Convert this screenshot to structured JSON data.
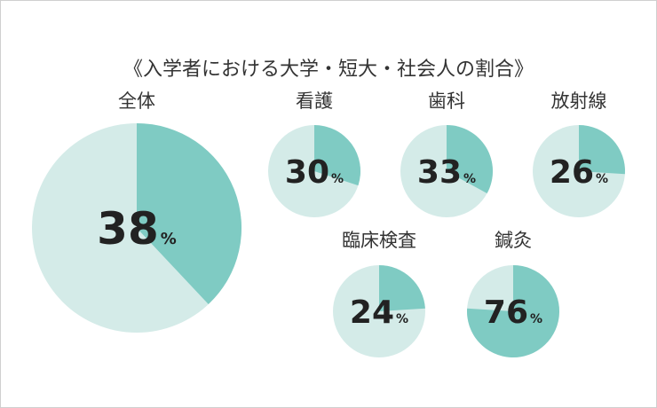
{
  "chart_data": {
    "type": "pie",
    "title": "《入学者における大学・短大・社会人の割合》",
    "unit": "%",
    "colors": {
      "share": "#7fcbc3",
      "rest": "#d4ebe8"
    },
    "pies": [
      {
        "label": "全体",
        "value": 38
      },
      {
        "label": "看護",
        "value": 30
      },
      {
        "label": "歯科",
        "value": 33
      },
      {
        "label": "放射線",
        "value": 26
      },
      {
        "label": "臨床検査",
        "value": 24
      },
      {
        "label": "鍼灸",
        "value": 76
      }
    ]
  }
}
